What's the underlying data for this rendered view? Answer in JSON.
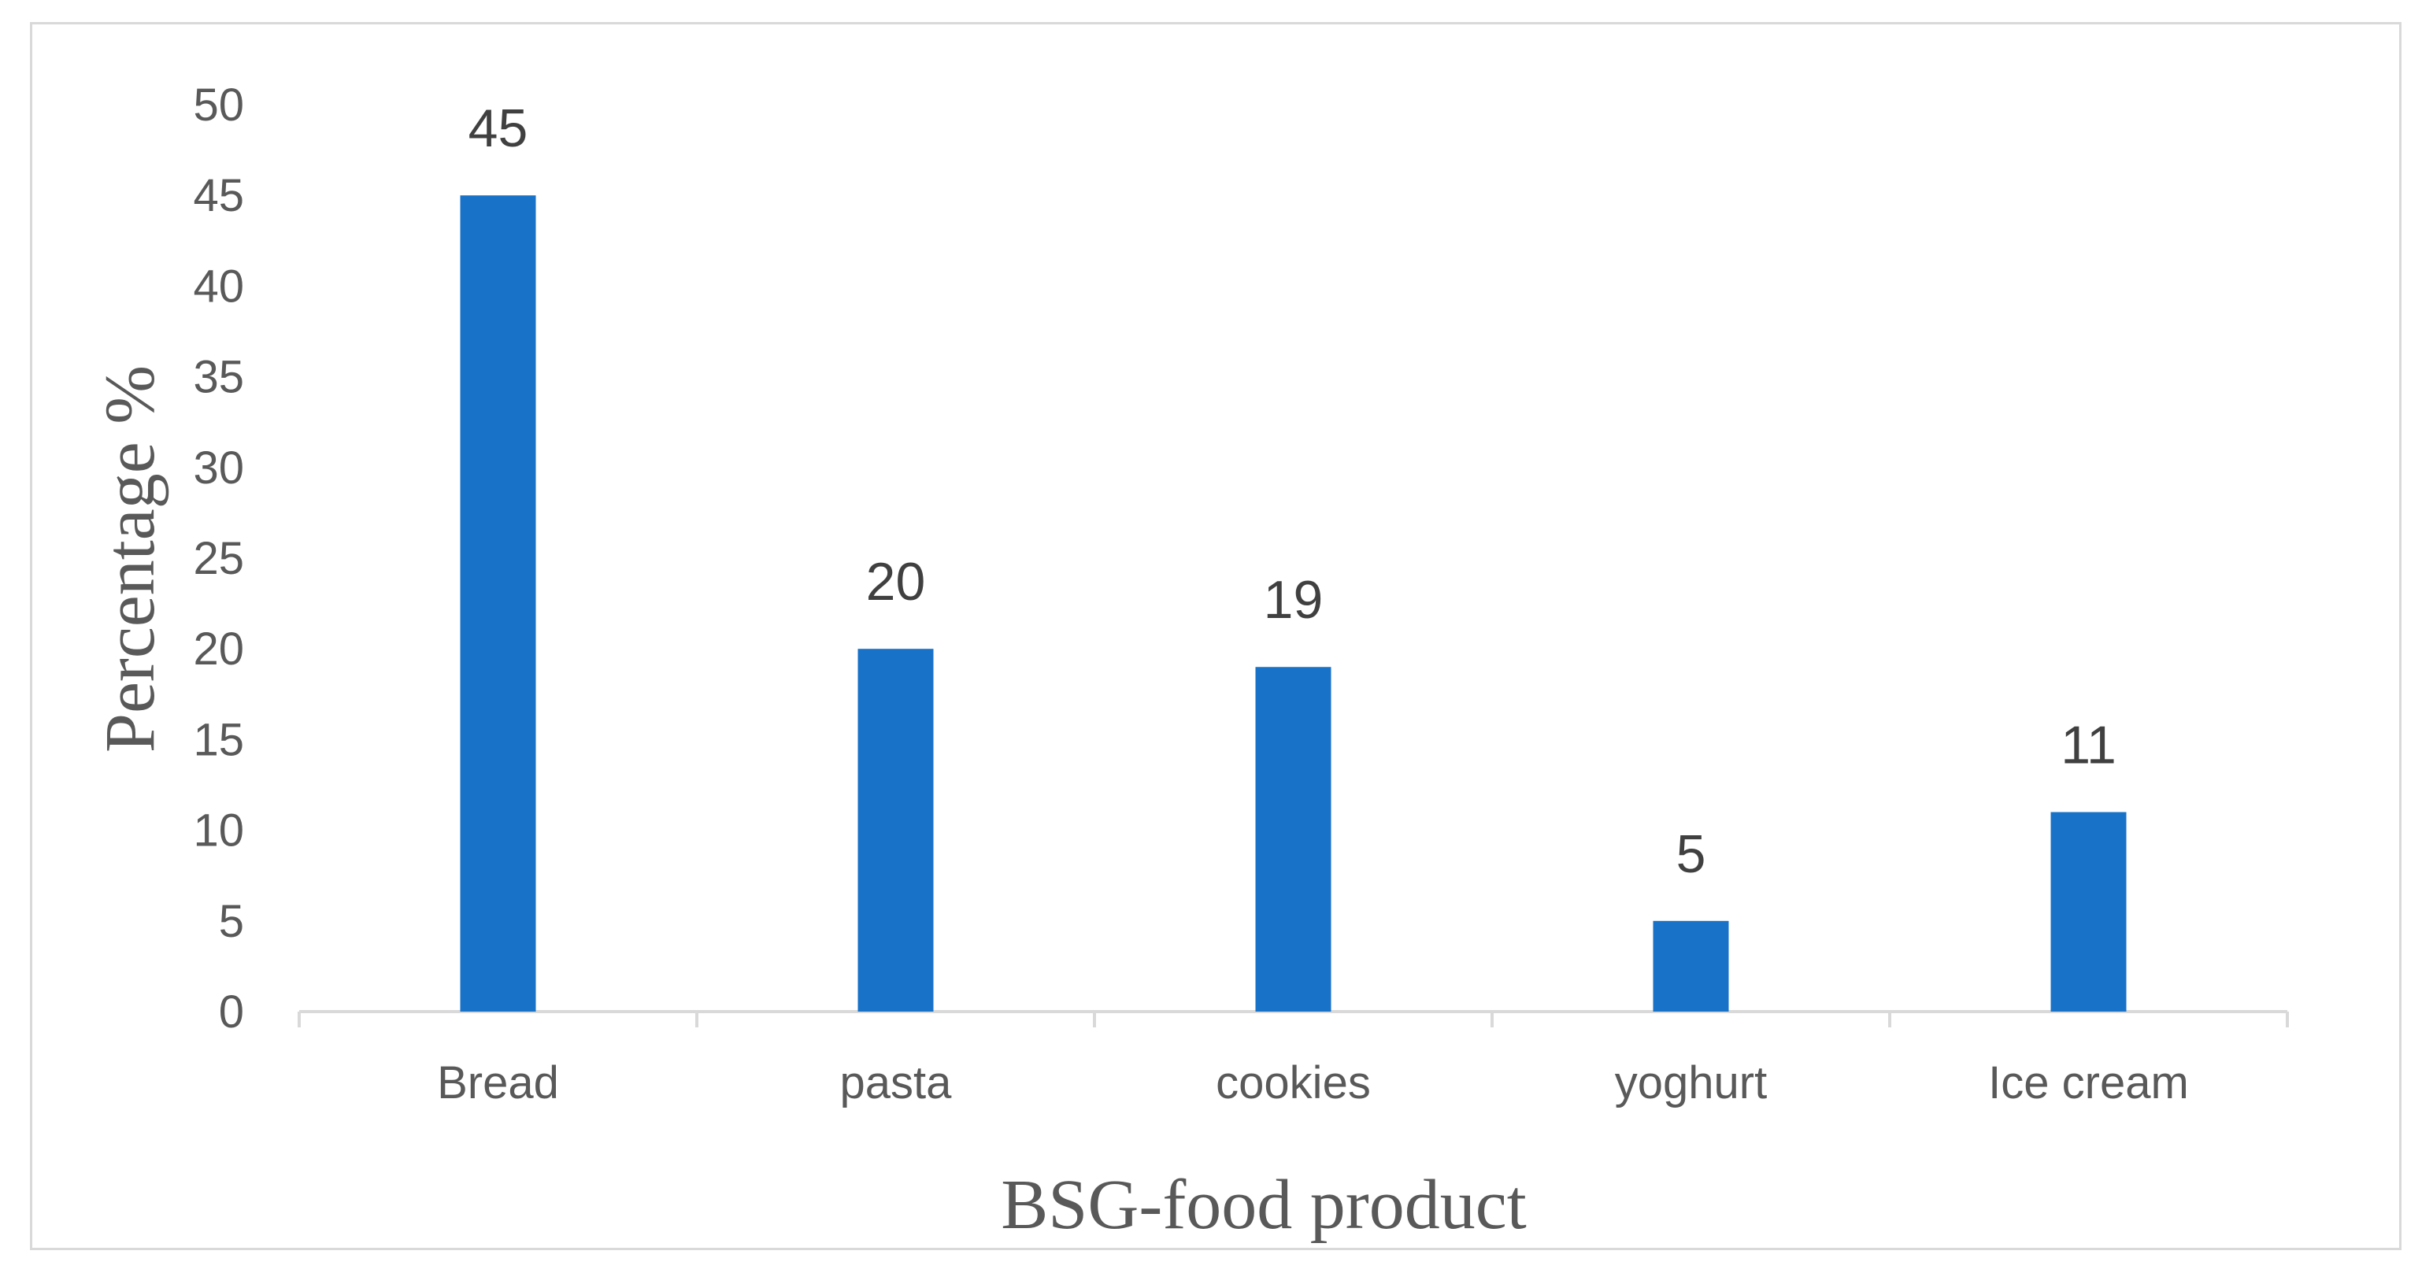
{
  "chart_data": {
    "type": "bar",
    "categories": [
      "Bread",
      "pasta",
      "cookies",
      "yoghurt",
      "Ice cream"
    ],
    "values": [
      45,
      20,
      19,
      5,
      11
    ],
    "data_labels": [
      "45",
      "20",
      "19",
      "5",
      "11"
    ],
    "title": "",
    "xlabel": "BSG-food product",
    "ylabel": "Percentage %",
    "ylim": [
      0,
      50
    ],
    "yticks": [
      "0",
      "5",
      "10",
      "15",
      "20",
      "25",
      "30",
      "35",
      "40",
      "45",
      "50"
    ],
    "grid": false,
    "legend": "none",
    "bar_color": "#1872c8",
    "axis_color": "#d9d9d9",
    "text_color": "#595959"
  }
}
